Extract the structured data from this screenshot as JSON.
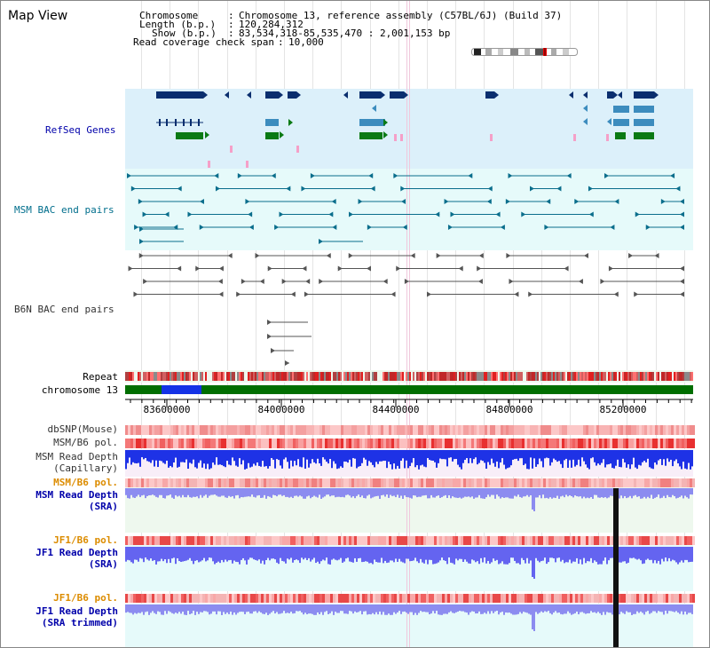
{
  "view_title": "Map View",
  "header": {
    "chromosome_label": "Chromosome",
    "chromosome_value": "Chromosome 13, reference assembly (C57BL/6J) (Build 37)",
    "length_label": "Length (b.p.)",
    "length_value": "120,284,312",
    "show_label": "Show (b.p.)",
    "show_value": "83,534,318-85,535,470 : 2,001,153 bp",
    "span_label": "Read coverage check span",
    "span_value": "10,000"
  },
  "tracks": {
    "refseq": "RefSeq Genes",
    "msm_bac": "MSM BAC end pairs",
    "b6n_bac": "B6N BAC end pairs",
    "repeat": "Repeat",
    "chromosome": "chromosome 13",
    "dbsnp": "dbSNP(Mouse)",
    "msm_b6_pol_1": "MSM/B6 pol.",
    "msm_depth_cap_1": "MSM Read Depth",
    "msm_depth_cap_2": "(Capillary)",
    "msm_b6_pol_2": "MSM/B6 pol.",
    "msm_depth_sra_1": "MSM Read Depth",
    "msm_depth_sra_2": "(SRA)",
    "jf1_b6_pol_1": "JF1/B6 pol.",
    "jf1_depth_sra_1": "JF1 Read Depth",
    "jf1_depth_sra_2": "(SRA)",
    "jf1_b6_pol_2": "JF1/B6 pol.",
    "jf1_depth_trim_1": "JF1 Read Depth",
    "jf1_depth_trim_2": "(SRA trimmed)"
  },
  "axis": {
    "ticks": [
      "83600000",
      "84000000",
      "84400000",
      "84800000",
      "85200000"
    ]
  },
  "colors": {
    "refseq_bg": "#dcf0fa",
    "msm_bac_bg": "#e6fafa",
    "gene_dark": "#0a2e6e",
    "gene_mid": "#3c8cbe",
    "gene_green": "#0a7a14",
    "msm_bac": "#0a6e8c",
    "b6n_bac": "#555555",
    "label_blue": "#0000aa",
    "label_teal": "#006e8c",
    "label_orange": "#dc8c00",
    "label_gray": "#333333",
    "chromosome_green": "#006e00",
    "chromosome_blue": "#1432e6"
  }
}
